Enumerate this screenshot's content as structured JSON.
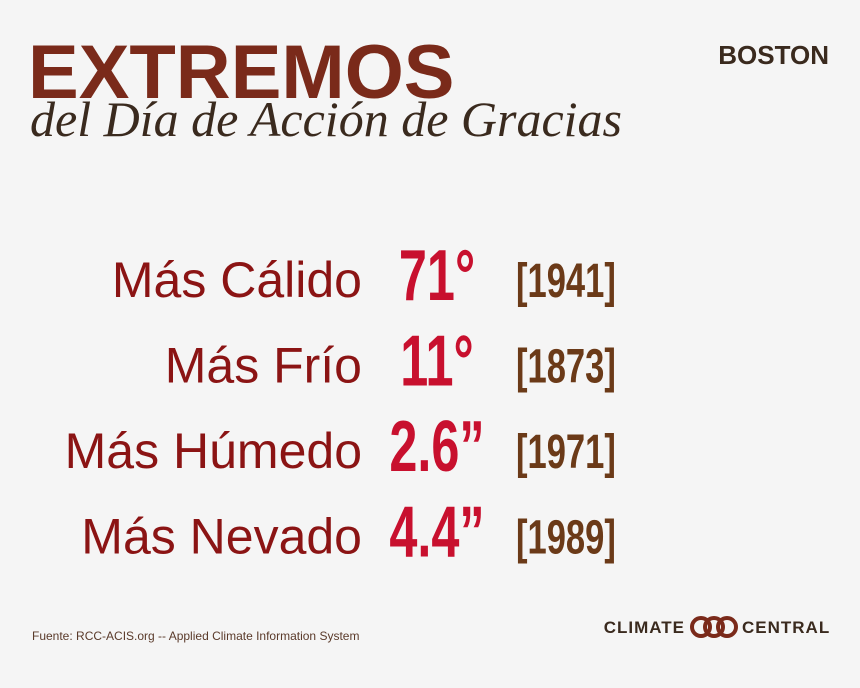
{
  "header": {
    "title": "EXTREMOS",
    "subtitle": "del Día de Acción de Gracias",
    "city": "BOSTON"
  },
  "rows": [
    {
      "label": "Más Cálido",
      "value": "71°",
      "year": "[1941]"
    },
    {
      "label": "Más Frío",
      "value": "11°",
      "year": "[1873]"
    },
    {
      "label": "Más Húmedo",
      "value": "2.6”",
      "year": "[1971]"
    },
    {
      "label": "Más Nevado",
      "value": "4.4”",
      "year": "[1989]"
    }
  ],
  "footer": {
    "source": "Fuente: RCC-ACIS.org -- Applied Climate Information System",
    "logo_left": "CLIMATE",
    "logo_right": "CENTRAL"
  }
}
